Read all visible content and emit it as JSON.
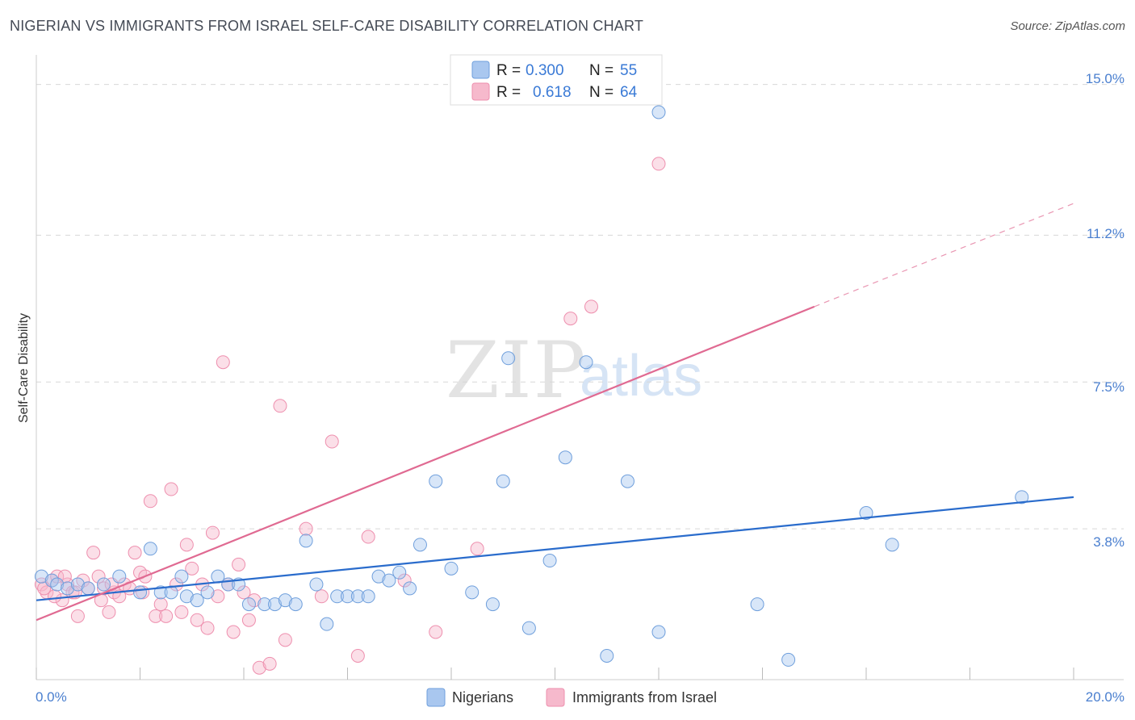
{
  "header": {
    "title": "NIGERIAN VS IMMIGRANTS FROM ISRAEL SELF-CARE DISABILITY CORRELATION CHART",
    "source": "Source: ZipAtlas.com"
  },
  "watermark": {
    "zip": "ZIP",
    "atlas": "atlas"
  },
  "colors": {
    "blue_fill": "#a9c7ef",
    "blue_stroke": "#6f9fdc",
    "blue_line": "#2a6ccc",
    "pink_fill": "#f6b9cc",
    "pink_stroke": "#ee8fae",
    "pink_line": "#e06a92",
    "tick_label": "#4a7fcf",
    "grid": "#d8d8d8"
  },
  "legend": {
    "rows": [
      {
        "r_label": "R = ",
        "r_value": "0.300",
        "n_label": "N = ",
        "n_value": "55"
      },
      {
        "r_label": "R = ",
        "r_value": "0.618",
        "n_label": "N = ",
        "n_value": "64"
      }
    ]
  },
  "chart_data": {
    "type": "scatter",
    "title": "NIGERIAN VS IMMIGRANTS FROM ISRAEL SELF-CARE DISABILITY CORRELATION CHART",
    "xlabel": "",
    "ylabel": "Self-Care Disability",
    "xlim": [
      0,
      20
    ],
    "ylim": [
      0,
      15.5
    ],
    "x_tick_labels": [
      "0.0%",
      "20.0%"
    ],
    "y_ticks": [
      3.8,
      7.5,
      11.2,
      15.0
    ],
    "y_tick_labels": [
      "3.8%",
      "7.5%",
      "11.2%",
      "15.0%"
    ],
    "grid": true,
    "legend_position": "top-center",
    "series": [
      {
        "name": "Nigerians",
        "r": 0.3,
        "n": 55,
        "trend": {
          "x0": 0,
          "y0": 2.0,
          "x1": 20,
          "y1": 4.6
        },
        "points": [
          [
            0.1,
            2.6
          ],
          [
            0.3,
            2.5
          ],
          [
            0.4,
            2.4
          ],
          [
            0.6,
            2.3
          ],
          [
            0.8,
            2.4
          ],
          [
            1.0,
            2.3
          ],
          [
            1.3,
            2.4
          ],
          [
            1.6,
            2.6
          ],
          [
            2.0,
            2.2
          ],
          [
            2.2,
            3.3
          ],
          [
            2.4,
            2.2
          ],
          [
            2.6,
            2.2
          ],
          [
            2.8,
            2.6
          ],
          [
            2.9,
            2.1
          ],
          [
            3.1,
            2.0
          ],
          [
            3.3,
            2.2
          ],
          [
            3.5,
            2.6
          ],
          [
            3.7,
            2.4
          ],
          [
            3.9,
            2.4
          ],
          [
            4.1,
            1.9
          ],
          [
            4.4,
            1.9
          ],
          [
            4.6,
            1.9
          ],
          [
            4.8,
            2.0
          ],
          [
            5.0,
            1.9
          ],
          [
            5.2,
            3.5
          ],
          [
            5.4,
            2.4
          ],
          [
            5.6,
            1.4
          ],
          [
            5.8,
            2.1
          ],
          [
            6.0,
            2.1
          ],
          [
            6.2,
            2.1
          ],
          [
            6.4,
            2.1
          ],
          [
            6.6,
            2.6
          ],
          [
            6.8,
            2.5
          ],
          [
            7.0,
            2.7
          ],
          [
            7.2,
            2.3
          ],
          [
            7.4,
            3.4
          ],
          [
            7.7,
            5.0
          ],
          [
            8.0,
            2.8
          ],
          [
            8.4,
            2.2
          ],
          [
            8.8,
            1.9
          ],
          [
            9.0,
            5.0
          ],
          [
            9.1,
            8.1
          ],
          [
            9.5,
            1.3
          ],
          [
            9.9,
            3.0
          ],
          [
            10.2,
            5.6
          ],
          [
            10.6,
            8.0
          ],
          [
            11.0,
            0.6
          ],
          [
            11.4,
            5.0
          ],
          [
            12.0,
            1.2
          ],
          [
            12.0,
            14.3
          ],
          [
            13.9,
            1.9
          ],
          [
            14.5,
            0.5
          ],
          [
            16.0,
            4.2
          ],
          [
            16.5,
            3.4
          ],
          [
            19.0,
            4.6
          ]
        ]
      },
      {
        "name": "Immigrants from Israel",
        "r": 0.618,
        "n": 64,
        "trend": {
          "x0": 0,
          "y0": 1.5,
          "x1": 15.0,
          "y1": 9.4
        },
        "trend_dashed": {
          "x0": 15.0,
          "y0": 9.4,
          "x1": 20,
          "y1": 12.0
        },
        "points": [
          [
            0.1,
            2.4
          ],
          [
            0.2,
            2.2
          ],
          [
            0.3,
            2.5
          ],
          [
            0.4,
            2.6
          ],
          [
            0.5,
            2.0
          ],
          [
            0.6,
            2.4
          ],
          [
            0.7,
            2.2
          ],
          [
            0.8,
            1.6
          ],
          [
            0.9,
            2.5
          ],
          [
            1.0,
            2.3
          ],
          [
            1.1,
            3.2
          ],
          [
            1.2,
            2.6
          ],
          [
            1.3,
            2.3
          ],
          [
            1.4,
            1.7
          ],
          [
            1.5,
            2.2
          ],
          [
            1.6,
            2.1
          ],
          [
            1.7,
            2.4
          ],
          [
            1.8,
            2.3
          ],
          [
            1.9,
            3.2
          ],
          [
            2.0,
            2.7
          ],
          [
            2.1,
            2.6
          ],
          [
            2.2,
            4.5
          ],
          [
            2.3,
            1.6
          ],
          [
            2.4,
            1.9
          ],
          [
            2.5,
            1.6
          ],
          [
            2.6,
            4.8
          ],
          [
            2.7,
            2.4
          ],
          [
            2.8,
            1.7
          ],
          [
            2.9,
            3.4
          ],
          [
            3.0,
            2.8
          ],
          [
            3.1,
            1.5
          ],
          [
            3.2,
            2.4
          ],
          [
            3.3,
            1.3
          ],
          [
            3.4,
            3.7
          ],
          [
            3.5,
            2.1
          ],
          [
            3.6,
            8.0
          ],
          [
            3.7,
            2.4
          ],
          [
            3.8,
            1.2
          ],
          [
            3.9,
            2.9
          ],
          [
            4.0,
            2.2
          ],
          [
            4.1,
            1.5
          ],
          [
            4.2,
            2.0
          ],
          [
            4.3,
            0.3
          ],
          [
            4.5,
            0.4
          ],
          [
            4.7,
            6.9
          ],
          [
            4.8,
            1.0
          ],
          [
            5.2,
            3.8
          ],
          [
            5.5,
            2.1
          ],
          [
            5.7,
            6.0
          ],
          [
            6.2,
            0.6
          ],
          [
            6.4,
            3.6
          ],
          [
            7.1,
            2.5
          ],
          [
            7.7,
            1.2
          ],
          [
            8.5,
            3.3
          ],
          [
            10.3,
            9.1
          ],
          [
            10.7,
            9.4
          ],
          [
            12.0,
            13.0
          ],
          [
            0.15,
            2.3
          ],
          [
            0.35,
            2.1
          ],
          [
            0.55,
            2.6
          ],
          [
            0.75,
            2.2
          ],
          [
            1.25,
            2.0
          ],
          [
            1.45,
            2.4
          ],
          [
            2.05,
            2.2
          ]
        ]
      }
    ]
  },
  "bottom_legend": {
    "items": [
      {
        "label": "Nigerians"
      },
      {
        "label": "Immigrants from Israel"
      }
    ]
  }
}
